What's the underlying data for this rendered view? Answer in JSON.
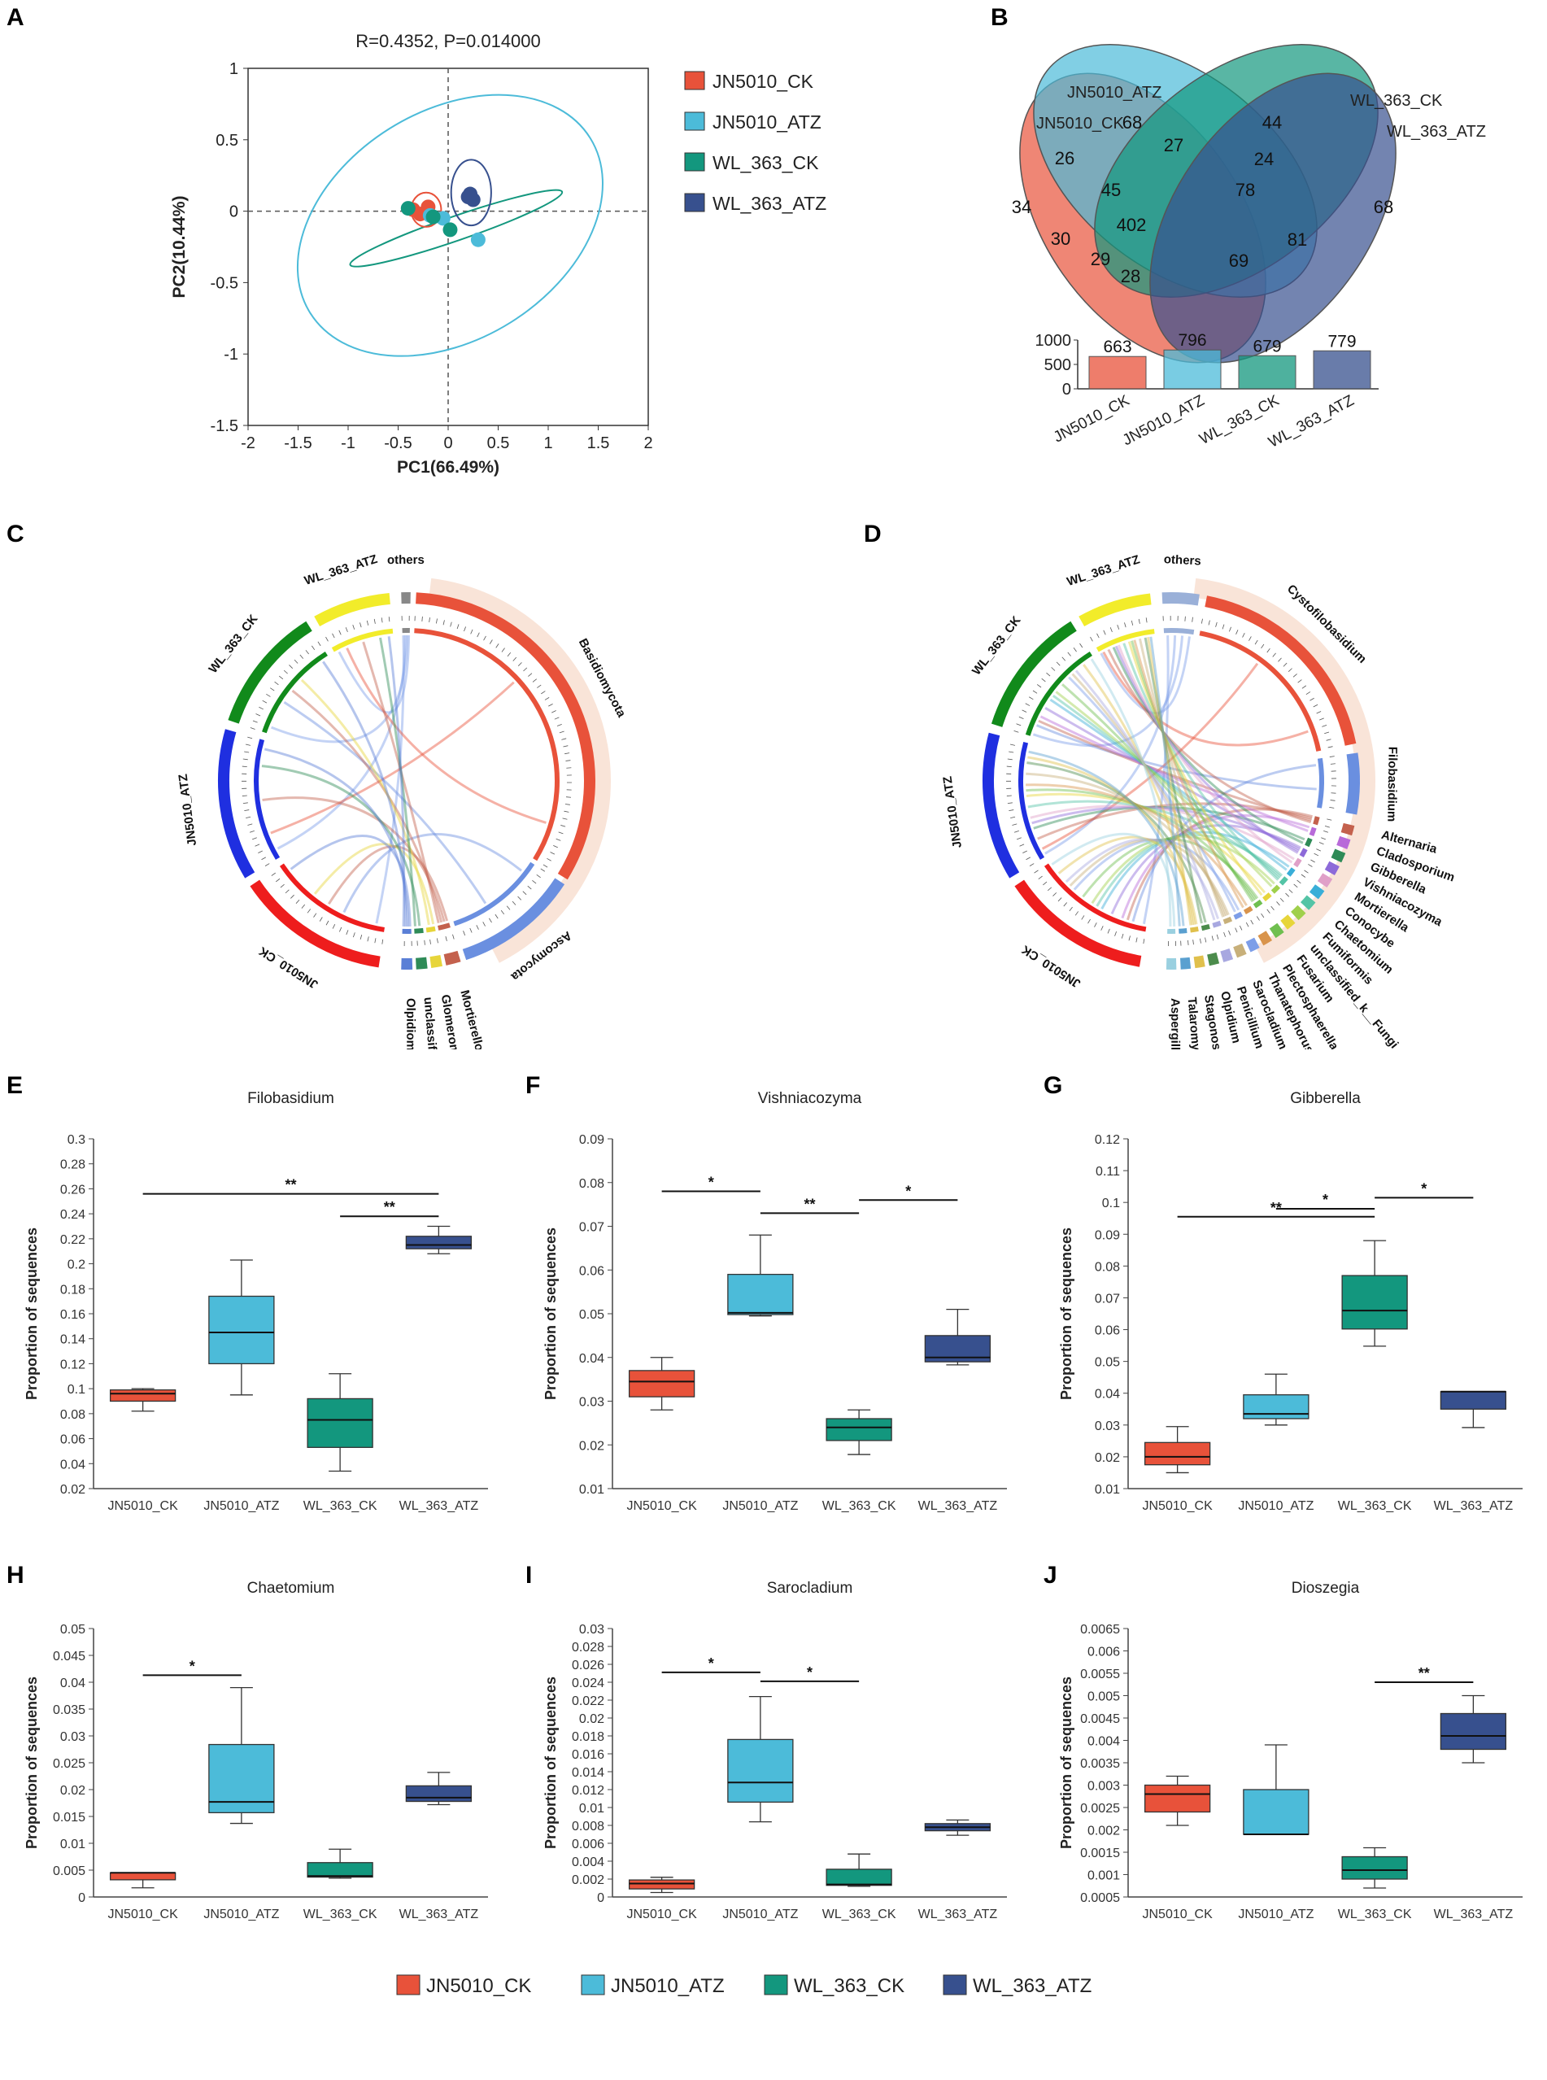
{
  "groups": [
    "JN5010_CK",
    "JN5010_ATZ",
    "WL_363_CK",
    "WL_363_ATZ"
  ],
  "colors": {
    "JN5010_CK": "#e8523a",
    "JN5010_ATZ": "#4cbbd9",
    "WL_363_CK": "#13977e",
    "WL_363_ATZ": "#37508e"
  },
  "panel_labels": [
    "A",
    "B",
    "C",
    "D",
    "E",
    "F",
    "G",
    "H",
    "I",
    "J"
  ],
  "chart_data": [
    {
      "panel": "A",
      "type": "scatter",
      "title": "R=0.4352, P=0.014000",
      "xlabel": "PC1(66.49%)",
      "ylabel": "PC2(10.44%)",
      "xlim": [
        -2,
        2
      ],
      "ylim": [
        -1.5,
        1
      ],
      "xticks": [
        "-2",
        "-1.5",
        "-1",
        "-0.5",
        "0",
        "0.5",
        "1",
        "1.5",
        "2"
      ],
      "yticks": [
        "-1.5",
        "-1",
        "-0.5",
        "0",
        "0.5",
        "1"
      ],
      "legend": [
        "JN5010_CK",
        "JN5010_ATZ",
        "WL_363_CK",
        "WL_363_ATZ"
      ],
      "series": [
        {
          "name": "JN5010_CK",
          "points": [
            [
              -0.35,
              0.01
            ],
            [
              -0.2,
              0.03
            ],
            [
              -0.28,
              -0.02
            ]
          ]
        },
        {
          "name": "JN5010_ATZ",
          "points": [
            [
              -0.18,
              -0.03
            ],
            [
              0.3,
              -0.2
            ],
            [
              -0.05,
              -0.05
            ]
          ]
        },
        {
          "name": "WL_363_CK",
          "points": [
            [
              -0.4,
              0.02
            ],
            [
              -0.15,
              -0.04
            ],
            [
              0.02,
              -0.13
            ]
          ]
        },
        {
          "name": "WL_363_ATZ",
          "points": [
            [
              0.2,
              0.1
            ],
            [
              0.25,
              0.08
            ],
            [
              0.22,
              0.12
            ]
          ]
        }
      ],
      "ellipses": [
        {
          "name": "JN5010_ATZ",
          "cx": 0.02,
          "cy": -0.1,
          "rx": 1.65,
          "ry": 0.8,
          "angle_deg": -32
        },
        {
          "name": "WL_363_CK",
          "cx": 0.08,
          "cy": -0.12,
          "rx": 1.12,
          "ry": 0.085,
          "angle_deg": -19
        },
        {
          "name": "JN5010_CK",
          "cx": -0.22,
          "cy": 0.01,
          "rx": 0.15,
          "ry": 0.12,
          "angle_deg": 0
        },
        {
          "name": "WL_363_ATZ",
          "cx": 0.23,
          "cy": 0.13,
          "rx": 0.2,
          "ry": 0.23,
          "angle_deg": 0
        }
      ]
    },
    {
      "panel": "B",
      "type": "venn",
      "sets": [
        "JN5010_CK",
        "JN5010_ATZ",
        "WL_363_CK",
        "WL_363_ATZ"
      ],
      "regions": [
        "34",
        "68",
        "44",
        "68",
        "26",
        "27",
        "24",
        "45",
        "78",
        "81",
        "30",
        "402",
        "29",
        "69",
        "28"
      ],
      "bars": {
        "categories": [
          "JN5010_CK",
          "JN5010_ATZ",
          "WL_363_CK",
          "WL_363_ATZ"
        ],
        "values": [
          663,
          796,
          679,
          779
        ],
        "yticks": [
          "1000",
          "500",
          "0"
        ],
        "ylim": [
          0,
          1000
        ]
      }
    },
    {
      "panel": "C",
      "type": "chord",
      "segments": [
        "others",
        "Basidiomycota",
        "Ascomycota",
        "Mortierellomycota",
        "Glomeromycota",
        "unclassified_k__Fungi",
        "Olpidiomycota",
        "JN5010_CK",
        "JN5010_ATZ",
        "WL_363_CK",
        "WL_363_ATZ"
      ]
    },
    {
      "panel": "D",
      "type": "chord",
      "segments": [
        "others",
        "Cystofilobasidium",
        "Filobasidium",
        "Alternaria",
        "Cladosporium",
        "Gibberella",
        "Vishniacozyma",
        "Mortierella",
        "Conocybe",
        "Chaetomium",
        "Fumiformis",
        "unclassified_k__Fungi",
        "Fusarium",
        "Plectosphaerella",
        "Thanatephorus",
        "Sarocladium",
        "Penicillium",
        "Olpidium",
        "Stagonospora",
        "Talaromyces",
        "Aspergillus",
        "JN5010_CK",
        "JN5010_ATZ",
        "WL_363_CK",
        "WL_363_ATZ"
      ]
    },
    {
      "panel": "E",
      "type": "box",
      "title": "Filobasidium",
      "ylabel": "Proportion of sequences",
      "ylim": [
        0.02,
        0.3
      ],
      "yticks": [
        "0.02",
        "0.04",
        "0.06",
        "0.08",
        "0.1",
        "0.12",
        "0.14",
        "0.16",
        "0.18",
        "0.2",
        "0.22",
        "0.24",
        "0.26",
        "0.28",
        "0.3"
      ],
      "categories": [
        "JN5010_CK",
        "JN5010_ATZ",
        "WL_363_CK",
        "WL_363_ATZ"
      ],
      "boxes": [
        {
          "min": 0.082,
          "q1": 0.09,
          "median": 0.096,
          "q3": 0.099,
          "max": 0.1
        },
        {
          "min": 0.095,
          "q1": 0.12,
          "median": 0.145,
          "q3": 0.174,
          "max": 0.203
        },
        {
          "min": 0.034,
          "q1": 0.053,
          "median": 0.075,
          "q3": 0.092,
          "max": 0.112
        },
        {
          "min": 0.208,
          "q1": 0.212,
          "median": 0.215,
          "q3": 0.222,
          "max": 0.23
        }
      ],
      "significance": [
        {
          "from": 0,
          "to": 3,
          "level": 0.256,
          "label": "**"
        },
        {
          "from": 2,
          "to": 3,
          "level": 0.238,
          "label": "**"
        }
      ]
    },
    {
      "panel": "F",
      "type": "box",
      "title": "Vishniacozyma",
      "ylabel": "Proportion of sequences",
      "ylim": [
        0.01,
        0.09
      ],
      "yticks": [
        "0.01",
        "0.02",
        "0.03",
        "0.04",
        "0.05",
        "0.06",
        "0.07",
        "0.08",
        "0.09"
      ],
      "categories": [
        "JN5010_CK",
        "JN5010_ATZ",
        "WL_363_CK",
        "WL_363_ATZ"
      ],
      "boxes": [
        {
          "min": 0.028,
          "q1": 0.031,
          "median": 0.0345,
          "q3": 0.037,
          "max": 0.04
        },
        {
          "min": 0.0495,
          "q1": 0.0498,
          "median": 0.0502,
          "q3": 0.059,
          "max": 0.068
        },
        {
          "min": 0.0178,
          "q1": 0.021,
          "median": 0.024,
          "q3": 0.026,
          "max": 0.028
        },
        {
          "min": 0.0383,
          "q1": 0.039,
          "median": 0.04,
          "q3": 0.045,
          "max": 0.051
        }
      ],
      "significance": [
        {
          "from": 0,
          "to": 1,
          "level": 0.078,
          "label": "*"
        },
        {
          "from": 1,
          "to": 2,
          "level": 0.073,
          "label": "**"
        },
        {
          "from": 2,
          "to": 3,
          "level": 0.076,
          "label": "*"
        }
      ]
    },
    {
      "panel": "G",
      "type": "box",
      "title": "Gibberella",
      "ylabel": "Proportion of sequences",
      "ylim": [
        0.01,
        0.12
      ],
      "yticks": [
        "0.01",
        "0.02",
        "0.03",
        "0.04",
        "0.05",
        "0.06",
        "0.07",
        "0.08",
        "0.09",
        "0.1",
        "0.11",
        "0.12"
      ],
      "categories": [
        "JN5010_CK",
        "JN5010_ATZ",
        "WL_363_CK",
        "WL_363_ATZ"
      ],
      "boxes": [
        {
          "min": 0.015,
          "q1": 0.0175,
          "median": 0.02,
          "q3": 0.0245,
          "max": 0.0295
        },
        {
          "min": 0.03,
          "q1": 0.032,
          "median": 0.0335,
          "q3": 0.0395,
          "max": 0.046
        },
        {
          "min": 0.0548,
          "q1": 0.0602,
          "median": 0.066,
          "q3": 0.077,
          "max": 0.088
        },
        {
          "min": 0.0292,
          "q1": 0.035,
          "median": 0.0405,
          "q3": 0.0405,
          "max": 0.0405
        }
      ],
      "significance": [
        {
          "from": 0,
          "to": 2,
          "level": 0.0955,
          "label": "**"
        },
        {
          "from": 1,
          "to": 2,
          "level": 0.098,
          "label": "*"
        },
        {
          "from": 2,
          "to": 3,
          "level": 0.1015,
          "label": "*"
        }
      ]
    },
    {
      "panel": "H",
      "type": "box",
      "title": "Chaetomium",
      "ylabel": "Proportion of sequences",
      "ylim": [
        0,
        0.05
      ],
      "yticks": [
        "0",
        "0.005",
        "0.01",
        "0.015",
        "0.02",
        "0.025",
        "0.03",
        "0.035",
        "0.04",
        "0.045",
        "0.05"
      ],
      "categories": [
        "JN5010_CK",
        "JN5010_ATZ",
        "WL_363_CK",
        "WL_363_ATZ"
      ],
      "boxes": [
        {
          "min": 0.0017,
          "q1": 0.0032,
          "median": 0.0045,
          "q3": 0.0045,
          "max": 0.0045
        },
        {
          "min": 0.0137,
          "q1": 0.0157,
          "median": 0.0177,
          "q3": 0.0284,
          "max": 0.039
        },
        {
          "min": 0.0035,
          "q1": 0.0037,
          "median": 0.0039,
          "q3": 0.0064,
          "max": 0.0089
        },
        {
          "min": 0.0172,
          "q1": 0.0178,
          "median": 0.0185,
          "q3": 0.0207,
          "max": 0.0232
        }
      ],
      "significance": [
        {
          "from": 0,
          "to": 1,
          "level": 0.0413,
          "label": "*"
        }
      ]
    },
    {
      "panel": "I",
      "type": "box",
      "title": "Sarocladium",
      "ylabel": "Proportion of sequences",
      "ylim": [
        0,
        0.03
      ],
      "yticks": [
        "0",
        "0.002",
        "0.004",
        "0.006",
        "0.008",
        "0.01",
        "0.012",
        "0.014",
        "0.016",
        "0.018",
        "0.02",
        "0.022",
        "0.024",
        "0.026",
        "0.028",
        "0.03"
      ],
      "categories": [
        "JN5010_CK",
        "JN5010_ATZ",
        "WL_363_CK",
        "WL_363_ATZ"
      ],
      "boxes": [
        {
          "min": 0.0005,
          "q1": 0.0009,
          "median": 0.0015,
          "q3": 0.0019,
          "max": 0.0022
        },
        {
          "min": 0.0084,
          "q1": 0.0106,
          "median": 0.0128,
          "q3": 0.0176,
          "max": 0.0224
        },
        {
          "min": 0.0012,
          "q1": 0.0013,
          "median": 0.0014,
          "q3": 0.0031,
          "max": 0.0048
        },
        {
          "min": 0.0069,
          "q1": 0.0074,
          "median": 0.0078,
          "q3": 0.0082,
          "max": 0.0086
        }
      ],
      "significance": [
        {
          "from": 0,
          "to": 1,
          "level": 0.0251,
          "label": "*"
        },
        {
          "from": 1,
          "to": 2,
          "level": 0.0241,
          "label": "*"
        }
      ]
    },
    {
      "panel": "J",
      "type": "box",
      "title": "Dioszegia",
      "ylabel": "Proportion of sequences",
      "ylim": [
        0.0005,
        0.0065
      ],
      "yticks": [
        "0.0005",
        "0.001",
        "0.0015",
        "0.002",
        "0.0025",
        "0.003",
        "0.0035",
        "0.004",
        "0.0045",
        "0.005",
        "0.0055",
        "0.006",
        "0.0065"
      ],
      "categories": [
        "JN5010_CK",
        "JN5010_ATZ",
        "WL_363_CK",
        "WL_363_ATZ"
      ],
      "boxes": [
        {
          "min": 0.0021,
          "q1": 0.0024,
          "median": 0.0028,
          "q3": 0.003,
          "max": 0.0032
        },
        {
          "min": 0.0019,
          "q1": 0.0019,
          "median": 0.0019,
          "q3": 0.0029,
          "max": 0.0039
        },
        {
          "min": 0.0007,
          "q1": 0.0009,
          "median": 0.0011,
          "q3": 0.0014,
          "max": 0.0016
        },
        {
          "min": 0.0035,
          "q1": 0.0038,
          "median": 0.0041,
          "q3": 0.0046,
          "max": 0.005
        }
      ],
      "significance": [
        {
          "from": 2,
          "to": 3,
          "level": 0.0053,
          "label": "**"
        }
      ]
    }
  ]
}
